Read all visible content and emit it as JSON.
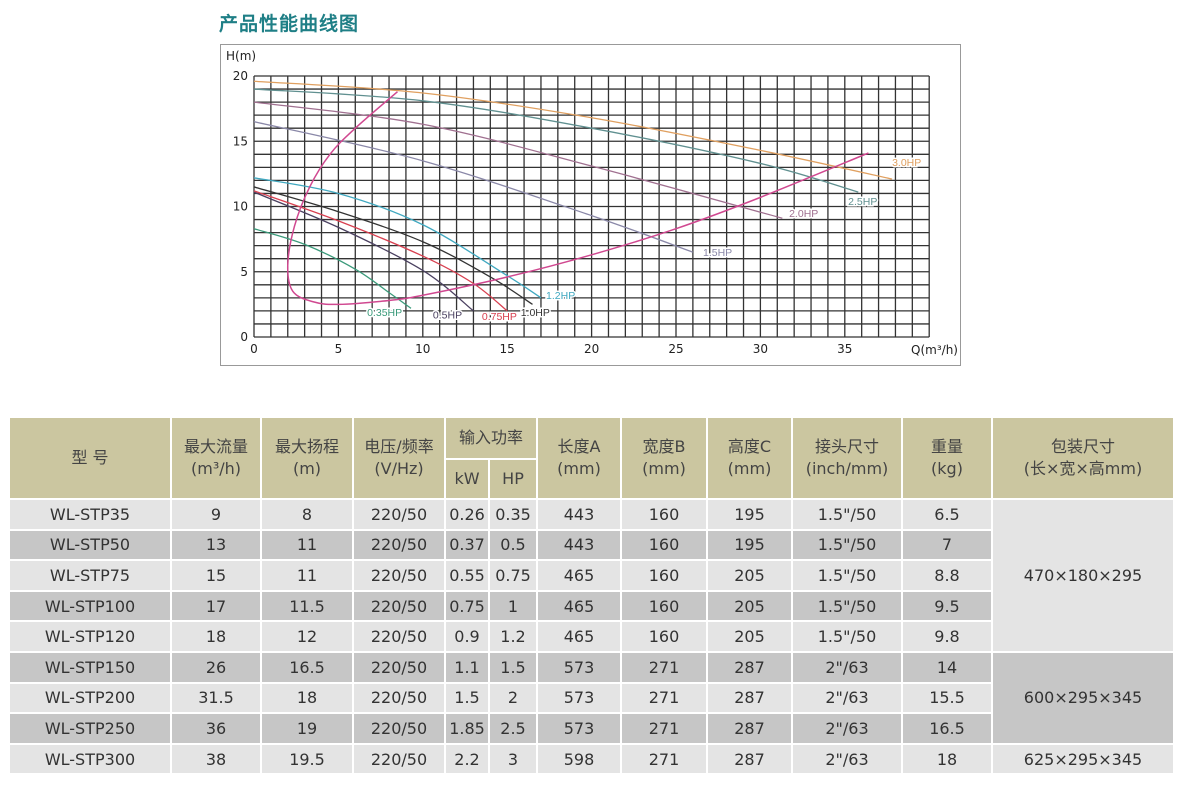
{
  "title": "产品性能曲线图",
  "chart_data": {
    "type": "line",
    "xlabel": "Q(m³/h)",
    "ylabel": "H(m)",
    "xlim": [
      0,
      40
    ],
    "ylim": [
      0,
      20
    ],
    "x_ticks": [
      0,
      5,
      10,
      15,
      20,
      25,
      30,
      35
    ],
    "y_ticks": [
      0,
      5,
      10,
      15,
      20
    ],
    "grid": true,
    "series": [
      {
        "name": "0.35HP",
        "color": "#3a9a7a",
        "points": [
          [
            0,
            8.3
          ],
          [
            3,
            7.1
          ],
          [
            6,
            5.2
          ],
          [
            8,
            3.4
          ],
          [
            9.3,
            2.2
          ]
        ]
      },
      {
        "name": "0.5HP",
        "color": "#4a4060",
        "points": [
          [
            0,
            11.1
          ],
          [
            5,
            8.4
          ],
          [
            10,
            5.1
          ],
          [
            13,
            2
          ]
        ]
      },
      {
        "name": "0.75HP",
        "color": "#d84050",
        "points": [
          [
            0,
            11.2
          ],
          [
            5,
            8.9
          ],
          [
            10,
            6.2
          ],
          [
            13,
            4.1
          ],
          [
            15,
            2
          ]
        ]
      },
      {
        "name": "1.0HP",
        "color": "#333333",
        "points": [
          [
            0,
            11.5
          ],
          [
            5,
            9.6
          ],
          [
            10,
            7.3
          ],
          [
            14,
            4.6
          ],
          [
            16.5,
            2.5
          ]
        ]
      },
      {
        "name": "1.2HP",
        "color": "#40a8c0",
        "points": [
          [
            0,
            12.2
          ],
          [
            5,
            11
          ],
          [
            10,
            8.6
          ],
          [
            15,
            4.7
          ],
          [
            17,
            3
          ]
        ]
      },
      {
        "name": "1.5HP",
        "color": "#8a88a8",
        "points": [
          [
            0,
            16.5
          ],
          [
            10,
            13.5
          ],
          [
            20,
            9.3
          ],
          [
            26,
            6.5
          ]
        ]
      },
      {
        "name": "2.0HP",
        "color": "#a07090",
        "points": [
          [
            0,
            18
          ],
          [
            10,
            16.3
          ],
          [
            20,
            13.1
          ],
          [
            31.3,
            9.1
          ]
        ]
      },
      {
        "name": "2.5HP",
        "color": "#609090",
        "points": [
          [
            0,
            19
          ],
          [
            10,
            18.1
          ],
          [
            20,
            16
          ],
          [
            30,
            13.3
          ],
          [
            35.8,
            11.1
          ]
        ]
      },
      {
        "name": "3.0HP",
        "color": "#e0a060",
        "points": [
          [
            0,
            19.6
          ],
          [
            10,
            18.7
          ],
          [
            20,
            16.8
          ],
          [
            30,
            14.3
          ],
          [
            37.8,
            12.1
          ]
        ]
      }
    ],
    "system_curve": {
      "color": "#d04890",
      "points": [
        [
          8.5,
          18.8
        ],
        [
          6,
          16
        ],
        [
          4.5,
          14
        ],
        [
          3.3,
          11.5
        ],
        [
          2.4,
          8.5
        ],
        [
          2,
          5.5
        ],
        [
          2.3,
          3.5
        ],
        [
          3.5,
          2.7
        ],
        [
          5,
          2.5
        ],
        [
          8,
          2.8
        ],
        [
          10,
          3.2
        ],
        [
          15,
          4.6
        ],
        [
          20,
          6.3
        ],
        [
          25,
          8.3
        ],
        [
          30,
          10.7
        ],
        [
          36.4,
          14.1
        ]
      ]
    }
  },
  "table": {
    "headers": {
      "model": "型  号",
      "flow": "最大流量",
      "flow_unit": "(m³/h)",
      "head": "最大扬程",
      "head_unit": "(m)",
      "voltage": "电压/频率",
      "voltage_unit": "(V/Hz)",
      "power": "输入功率",
      "kw": "kW",
      "hp": "HP",
      "length": "长度A",
      "length_unit": "(mm)",
      "width": "宽度B",
      "width_unit": "(mm)",
      "height": "高度C",
      "height_unit": "(mm)",
      "conn": "接头尺寸",
      "conn_unit": "(inch/mm)",
      "weight": "重量",
      "weight_unit": "(kg)",
      "pack": "包装尺寸",
      "pack_unit": "(长×宽×高mm)"
    },
    "rows": [
      [
        "WL-STP35",
        "9",
        "8",
        "220/50",
        "0.26",
        "0.35",
        "443",
        "160",
        "195",
        "1.5\"/50",
        "6.5"
      ],
      [
        "WL-STP50",
        "13",
        "11",
        "220/50",
        "0.37",
        "0.5",
        "443",
        "160",
        "195",
        "1.5\"/50",
        "7"
      ],
      [
        "WL-STP75",
        "15",
        "11",
        "220/50",
        "0.55",
        "0.75",
        "465",
        "160",
        "205",
        "1.5\"/50",
        "8.8"
      ],
      [
        "WL-STP100",
        "17",
        "11.5",
        "220/50",
        "0.75",
        "1",
        "465",
        "160",
        "205",
        "1.5\"/50",
        "9.5"
      ],
      [
        "WL-STP120",
        "18",
        "12",
        "220/50",
        "0.9",
        "1.2",
        "465",
        "160",
        "205",
        "1.5\"/50",
        "9.8"
      ],
      [
        "WL-STP150",
        "26",
        "16.5",
        "220/50",
        "1.1",
        "1.5",
        "573",
        "271",
        "287",
        "2\"/63",
        "14"
      ],
      [
        "WL-STP200",
        "31.5",
        "18",
        "220/50",
        "1.5",
        "2",
        "573",
        "271",
        "287",
        "2\"/63",
        "15.5"
      ],
      [
        "WL-STP250",
        "36",
        "19",
        "220/50",
        "1.85",
        "2.5",
        "573",
        "271",
        "287",
        "2\"/63",
        "16.5"
      ],
      [
        "WL-STP300",
        "38",
        "19.5",
        "220/50",
        "2.2",
        "3",
        "598",
        "271",
        "287",
        "2\"/63",
        "18"
      ]
    ],
    "packages": [
      {
        "value": "470×180×295",
        "rows": 5
      },
      {
        "value": "600×295×345",
        "rows": 3
      },
      {
        "value": "625×295×345",
        "rows": 1
      }
    ]
  }
}
